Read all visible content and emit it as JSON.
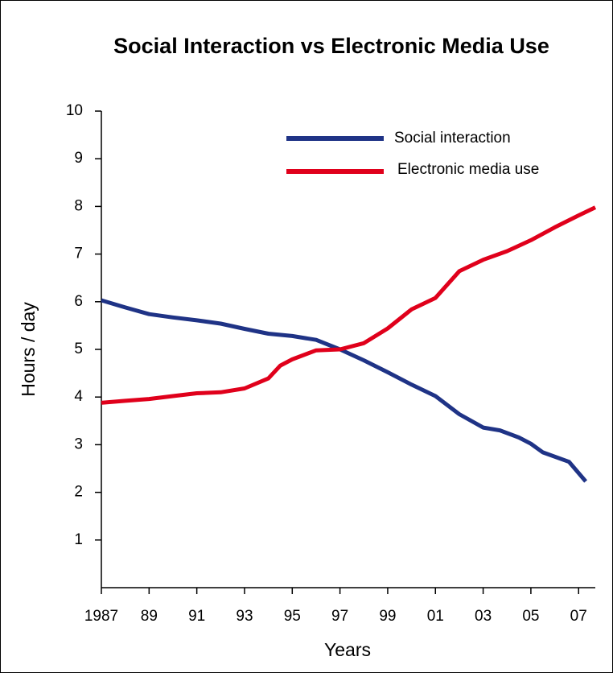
{
  "chart_data": {
    "type": "line",
    "title": "Social Interaction vs Electronic Media Use",
    "xlabel": "Years",
    "ylabel": "Hours / day",
    "xlim": [
      1987,
      2007.7
    ],
    "ylim": [
      0,
      10
    ],
    "yticks": [
      "1",
      "2",
      "3",
      "4",
      "5",
      "6",
      "7",
      "8",
      "9",
      "10"
    ],
    "xticks": [
      {
        "x": 1987,
        "label": "1987"
      },
      {
        "x": 1989,
        "label": "89"
      },
      {
        "x": 1991,
        "label": "91"
      },
      {
        "x": 1993,
        "label": "93"
      },
      {
        "x": 1995,
        "label": "95"
      },
      {
        "x": 1997,
        "label": "97"
      },
      {
        "x": 1999,
        "label": "99"
      },
      {
        "x": 2001,
        "label": "01"
      },
      {
        "x": 2003,
        "label": "03"
      },
      {
        "x": 2005,
        "label": "05"
      },
      {
        "x": 2007,
        "label": "07"
      }
    ],
    "grid": false,
    "legend_position": "top-right",
    "series": [
      {
        "name": "Social interaction",
        "color": "#1f3386",
        "points": [
          [
            1987,
            6.03
          ],
          [
            1988,
            5.88
          ],
          [
            1989,
            5.74
          ],
          [
            1990,
            5.67
          ],
          [
            1991,
            5.61
          ],
          [
            1992,
            5.54
          ],
          [
            1993,
            5.43
          ],
          [
            1994,
            5.33
          ],
          [
            1995,
            5.28
          ],
          [
            1996,
            5.2
          ],
          [
            1997,
            5.0
          ],
          [
            1998,
            4.77
          ],
          [
            1999,
            4.52
          ],
          [
            2000,
            4.26
          ],
          [
            2001,
            4.02
          ],
          [
            2002,
            3.64
          ],
          [
            2003,
            3.36
          ],
          [
            2003.7,
            3.3
          ],
          [
            2004.5,
            3.15
          ],
          [
            2005,
            3.02
          ],
          [
            2005.5,
            2.84
          ],
          [
            2006.6,
            2.64
          ],
          [
            2007.3,
            2.23
          ]
        ]
      },
      {
        "name": "Electronic media use",
        "color": "#e0001b",
        "points": [
          [
            1987,
            3.88
          ],
          [
            1988,
            3.92
          ],
          [
            1989,
            3.96
          ],
          [
            1990,
            4.02
          ],
          [
            1991,
            4.08
          ],
          [
            1992,
            4.1
          ],
          [
            1993,
            4.18
          ],
          [
            1994,
            4.39
          ],
          [
            1994.5,
            4.66
          ],
          [
            1995,
            4.79
          ],
          [
            1996,
            4.98
          ],
          [
            1997,
            5.0
          ],
          [
            1998,
            5.13
          ],
          [
            1999,
            5.44
          ],
          [
            2000,
            5.84
          ],
          [
            2001,
            6.08
          ],
          [
            2002,
            6.64
          ],
          [
            2003,
            6.88
          ],
          [
            2004,
            7.06
          ],
          [
            2005,
            7.29
          ],
          [
            2006,
            7.56
          ],
          [
            2007,
            7.81
          ],
          [
            2007.7,
            7.98
          ]
        ]
      }
    ]
  }
}
